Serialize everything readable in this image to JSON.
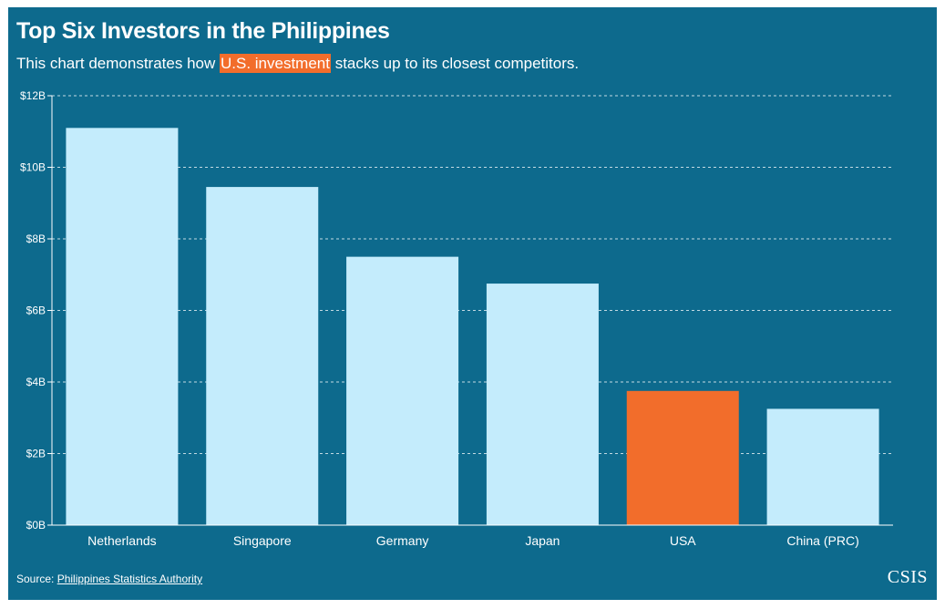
{
  "header": {
    "title": "Top Six Investors in the Philippines",
    "subtitle_before": "This chart demonstrates how ",
    "subtitle_highlight": "U.S. investment",
    "subtitle_after": " stacks up to its closest competitors."
  },
  "colors": {
    "background": "#0d6a8d",
    "bar": "#c4ecfc",
    "highlight": "#f26d2b",
    "text": "#ffffff"
  },
  "chart_data": {
    "type": "bar",
    "categories": [
      "Netherlands",
      "Singapore",
      "Germany",
      "Japan",
      "USA",
      "China (PRC)"
    ],
    "values": [
      11.1,
      9.45,
      7.5,
      6.75,
      3.75,
      3.25
    ],
    "highlight_category": "USA",
    "ylim": [
      0,
      12
    ],
    "yticks": [
      0,
      2,
      4,
      6,
      8,
      10,
      12
    ],
    "ytick_labels": [
      "$0B",
      "$2B",
      "$4B",
      "$6B",
      "$8B",
      "$10B",
      "$12B"
    ],
    "grid": "horizontal dashed",
    "legend": "none"
  },
  "footer": {
    "source_label": "Source: ",
    "source_link": "Philippines Statistics Authority",
    "logo": "CSIS"
  }
}
